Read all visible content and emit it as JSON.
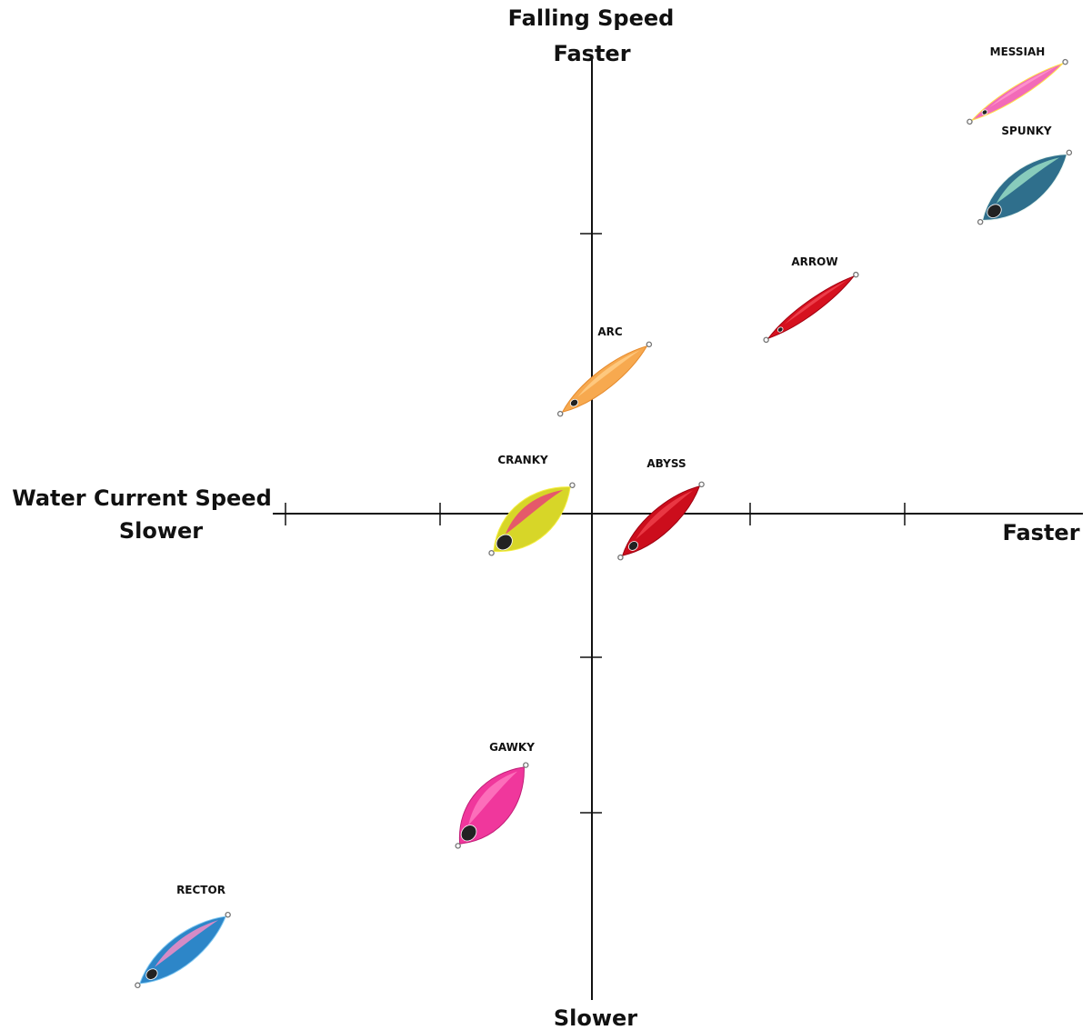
{
  "axes": {
    "y_title": "Falling Speed",
    "y_top": "Faster",
    "y_bottom": "Slower",
    "x_title": "Water Current Speed",
    "x_left": "Slower",
    "x_right": "Faster"
  },
  "colors": {
    "axis": "#111111",
    "text": "#111111"
  },
  "jigs": [
    {
      "name": "MESSIAH",
      "falling_speed": 3.0,
      "current_speed": 3.0,
      "color_main": "#f26bb8",
      "color_back": "#ff9ad0",
      "accent": "#ffe14a"
    },
    {
      "name": "SPUNKY",
      "falling_speed": 2.6,
      "current_speed": 3.0,
      "color_main": "#2f6f8c",
      "color_back": "#9fe3c8",
      "accent": "#e8f5ef"
    },
    {
      "name": "ARROW",
      "falling_speed": 1.6,
      "current_speed": 1.8,
      "color_main": "#d6111f",
      "color_back": "#f14a55",
      "accent": "#a00010"
    },
    {
      "name": "ARC",
      "falling_speed": 0.9,
      "current_speed": 0.1,
      "color_main": "#f7a94f",
      "color_back": "#ffcf8a",
      "accent": "#e58a2c"
    },
    {
      "name": "CRANKY",
      "falling_speed": 0.0,
      "current_speed": -0.4,
      "color_main": "#d7d628",
      "color_back": "#e93a7a",
      "accent": "#f6ee44"
    },
    {
      "name": "ABYSS",
      "falling_speed": 0.0,
      "current_speed": 0.4,
      "color_main": "#cc0d1c",
      "color_back": "#f0424e",
      "accent": "#9b0010"
    },
    {
      "name": "GAWKY",
      "falling_speed": -1.8,
      "current_speed": -0.4,
      "color_main": "#f0379c",
      "color_back": "#ff7cc2",
      "accent": "#c11f78"
    },
    {
      "name": "RECTOR",
      "falling_speed": -2.9,
      "current_speed": -2.7,
      "color_main": "#2d86c8",
      "color_back": "#ff8cc6",
      "accent": "#7fc8f2"
    }
  ]
}
